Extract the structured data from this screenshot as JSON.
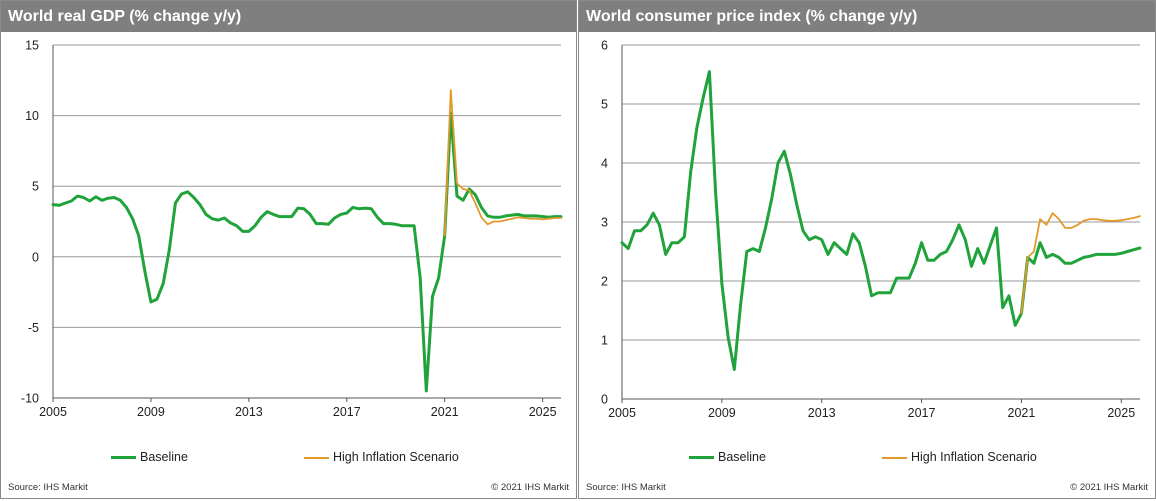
{
  "chart_data": [
    {
      "type": "line",
      "title": "World real GDP (% change y/y)",
      "x_ticks": [
        "2005",
        "2009",
        "2013",
        "2017",
        "2021",
        "2025"
      ],
      "y_ticks": [
        "15",
        "10",
        "5",
        "0",
        "-5",
        "-10"
      ],
      "xlim": [
        2005,
        2025.75
      ],
      "ylim": [
        -10,
        15
      ],
      "grid": "horizontal",
      "legend_position": "bottom",
      "series": [
        {
          "name": "Baseline",
          "color": "#1fa33a",
          "points": [
            [
              2005.0,
              3.7
            ],
            [
              2005.25,
              3.65
            ],
            [
              2005.5,
              3.8
            ],
            [
              2005.75,
              3.95
            ],
            [
              2006.0,
              4.3
            ],
            [
              2006.25,
              4.2
            ],
            [
              2006.5,
              3.95
            ],
            [
              2006.75,
              4.25
            ],
            [
              2007.0,
              4.0
            ],
            [
              2007.25,
              4.15
            ],
            [
              2007.5,
              4.2
            ],
            [
              2007.75,
              4.0
            ],
            [
              2008.0,
              3.5
            ],
            [
              2008.25,
              2.7
            ],
            [
              2008.5,
              1.5
            ],
            [
              2008.75,
              -1.0
            ],
            [
              2009.0,
              -3.2
            ],
            [
              2009.25,
              -3.0
            ],
            [
              2009.5,
              -1.9
            ],
            [
              2009.75,
              0.5
            ],
            [
              2010.0,
              3.8
            ],
            [
              2010.25,
              4.45
            ],
            [
              2010.5,
              4.6
            ],
            [
              2010.75,
              4.2
            ],
            [
              2011.0,
              3.7
            ],
            [
              2011.25,
              3.0
            ],
            [
              2011.5,
              2.7
            ],
            [
              2011.75,
              2.6
            ],
            [
              2012.0,
              2.75
            ],
            [
              2012.25,
              2.4
            ],
            [
              2012.5,
              2.2
            ],
            [
              2012.75,
              1.8
            ],
            [
              2013.0,
              1.8
            ],
            [
              2013.25,
              2.2
            ],
            [
              2013.5,
              2.8
            ],
            [
              2013.75,
              3.2
            ],
            [
              2014.0,
              3.0
            ],
            [
              2014.25,
              2.85
            ],
            [
              2014.5,
              2.85
            ],
            [
              2014.75,
              2.85
            ],
            [
              2015.0,
              3.45
            ],
            [
              2015.25,
              3.4
            ],
            [
              2015.5,
              3.0
            ],
            [
              2015.75,
              2.35
            ],
            [
              2016.0,
              2.35
            ],
            [
              2016.25,
              2.3
            ],
            [
              2016.5,
              2.75
            ],
            [
              2016.75,
              3.0
            ],
            [
              2017.0,
              3.1
            ],
            [
              2017.25,
              3.5
            ],
            [
              2017.5,
              3.4
            ],
            [
              2017.75,
              3.45
            ],
            [
              2018.0,
              3.4
            ],
            [
              2018.25,
              2.8
            ],
            [
              2018.5,
              2.35
            ],
            [
              2018.75,
              2.35
            ],
            [
              2019.0,
              2.3
            ],
            [
              2019.25,
              2.2
            ],
            [
              2019.5,
              2.2
            ],
            [
              2019.75,
              2.2
            ],
            [
              2020.0,
              -1.5
            ],
            [
              2020.25,
              -9.5
            ],
            [
              2020.5,
              -2.8
            ],
            [
              2020.75,
              -1.5
            ],
            [
              2021.0,
              1.5
            ],
            [
              2021.25,
              10.2
            ],
            [
              2021.5,
              4.3
            ],
            [
              2021.75,
              4.0
            ],
            [
              2022.0,
              4.8
            ],
            [
              2022.25,
              4.4
            ],
            [
              2022.5,
              3.5
            ],
            [
              2022.75,
              2.9
            ],
            [
              2023.0,
              2.8
            ],
            [
              2023.25,
              2.8
            ],
            [
              2023.5,
              2.9
            ],
            [
              2023.75,
              2.95
            ],
            [
              2024.0,
              3.0
            ],
            [
              2024.25,
              2.9
            ],
            [
              2024.5,
              2.9
            ],
            [
              2024.75,
              2.9
            ],
            [
              2025.0,
              2.85
            ],
            [
              2025.25,
              2.8
            ],
            [
              2025.5,
              2.85
            ],
            [
              2025.75,
              2.85
            ]
          ]
        },
        {
          "name": "High Inflation Scenario",
          "color": "#e3992a",
          "points": [
            [
              2021.0,
              1.5
            ],
            [
              2021.25,
              11.8
            ],
            [
              2021.5,
              5.2
            ],
            [
              2021.75,
              4.8
            ],
            [
              2022.0,
              4.7
            ],
            [
              2022.25,
              3.8
            ],
            [
              2022.5,
              2.8
            ],
            [
              2022.75,
              2.3
            ],
            [
              2023.0,
              2.5
            ],
            [
              2023.25,
              2.5
            ],
            [
              2023.5,
              2.6
            ],
            [
              2023.75,
              2.7
            ],
            [
              2024.0,
              2.8
            ],
            [
              2024.25,
              2.75
            ],
            [
              2024.5,
              2.7
            ],
            [
              2024.75,
              2.7
            ],
            [
              2025.0,
              2.65
            ],
            [
              2025.25,
              2.7
            ],
            [
              2025.5,
              2.75
            ],
            [
              2025.75,
              2.75
            ]
          ]
        }
      ]
    },
    {
      "type": "line",
      "title": "World consumer price index (% change y/y)",
      "x_ticks": [
        "2005",
        "2009",
        "2013",
        "2017",
        "2021",
        "2025"
      ],
      "y_ticks": [
        "6",
        "5",
        "4",
        "3",
        "2",
        "1",
        "0"
      ],
      "xlim": [
        2005,
        2025.75
      ],
      "ylim": [
        0,
        6
      ],
      "grid": "horizontal",
      "legend_position": "bottom",
      "series": [
        {
          "name": "Baseline",
          "color": "#1fa33a",
          "points": [
            [
              2005.0,
              2.65
            ],
            [
              2005.25,
              2.55
            ],
            [
              2005.5,
              2.85
            ],
            [
              2005.75,
              2.85
            ],
            [
              2006.0,
              2.95
            ],
            [
              2006.25,
              3.15
            ],
            [
              2006.5,
              2.95
            ],
            [
              2006.75,
              2.45
            ],
            [
              2007.0,
              2.65
            ],
            [
              2007.25,
              2.65
            ],
            [
              2007.5,
              2.75
            ],
            [
              2007.75,
              3.85
            ],
            [
              2008.0,
              4.6
            ],
            [
              2008.25,
              5.1
            ],
            [
              2008.5,
              5.55
            ],
            [
              2008.75,
              3.5
            ],
            [
              2009.0,
              1.95
            ],
            [
              2009.25,
              1.05
            ],
            [
              2009.5,
              0.5
            ],
            [
              2009.75,
              1.6
            ],
            [
              2010.0,
              2.5
            ],
            [
              2010.25,
              2.55
            ],
            [
              2010.5,
              2.5
            ],
            [
              2010.75,
              2.9
            ],
            [
              2011.0,
              3.4
            ],
            [
              2011.25,
              4.0
            ],
            [
              2011.5,
              4.2
            ],
            [
              2011.75,
              3.8
            ],
            [
              2012.0,
              3.3
            ],
            [
              2012.25,
              2.85
            ],
            [
              2012.5,
              2.7
            ],
            [
              2012.75,
              2.75
            ],
            [
              2013.0,
              2.7
            ],
            [
              2013.25,
              2.45
            ],
            [
              2013.5,
              2.65
            ],
            [
              2013.75,
              2.55
            ],
            [
              2014.0,
              2.45
            ],
            [
              2014.25,
              2.8
            ],
            [
              2014.5,
              2.65
            ],
            [
              2014.75,
              2.25
            ],
            [
              2015.0,
              1.75
            ],
            [
              2015.25,
              1.8
            ],
            [
              2015.5,
              1.8
            ],
            [
              2015.75,
              1.8
            ],
            [
              2016.0,
              2.05
            ],
            [
              2016.25,
              2.05
            ],
            [
              2016.5,
              2.05
            ],
            [
              2016.75,
              2.3
            ],
            [
              2017.0,
              2.65
            ],
            [
              2017.25,
              2.35
            ],
            [
              2017.5,
              2.35
            ],
            [
              2017.75,
              2.45
            ],
            [
              2018.0,
              2.5
            ],
            [
              2018.25,
              2.7
            ],
            [
              2018.5,
              2.95
            ],
            [
              2018.75,
              2.7
            ],
            [
              2019.0,
              2.25
            ],
            [
              2019.25,
              2.55
            ],
            [
              2019.5,
              2.3
            ],
            [
              2019.75,
              2.6
            ],
            [
              2020.0,
              2.9
            ],
            [
              2020.25,
              1.55
            ],
            [
              2020.5,
              1.75
            ],
            [
              2020.75,
              1.25
            ],
            [
              2021.0,
              1.45
            ],
            [
              2021.25,
              2.4
            ],
            [
              2021.5,
              2.3
            ],
            [
              2021.75,
              2.65
            ],
            [
              2022.0,
              2.4
            ],
            [
              2022.25,
              2.45
            ],
            [
              2022.5,
              2.4
            ],
            [
              2022.75,
              2.3
            ],
            [
              2023.0,
              2.3
            ],
            [
              2023.25,
              2.35
            ],
            [
              2023.5,
              2.4
            ],
            [
              2023.75,
              2.42
            ],
            [
              2024.0,
              2.45
            ],
            [
              2024.25,
              2.45
            ],
            [
              2024.5,
              2.45
            ],
            [
              2024.75,
              2.45
            ],
            [
              2025.0,
              2.47
            ],
            [
              2025.25,
              2.5
            ],
            [
              2025.5,
              2.53
            ],
            [
              2025.75,
              2.56
            ]
          ]
        },
        {
          "name": "High Inflation Scenario",
          "color": "#e3992a",
          "points": [
            [
              2021.0,
              1.45
            ],
            [
              2021.25,
              2.4
            ],
            [
              2021.5,
              2.5
            ],
            [
              2021.75,
              3.05
            ],
            [
              2022.0,
              2.95
            ],
            [
              2022.25,
              3.15
            ],
            [
              2022.5,
              3.05
            ],
            [
              2022.75,
              2.9
            ],
            [
              2023.0,
              2.9
            ],
            [
              2023.25,
              2.95
            ],
            [
              2023.5,
              3.02
            ],
            [
              2023.75,
              3.05
            ],
            [
              2024.0,
              3.05
            ],
            [
              2024.25,
              3.03
            ],
            [
              2024.5,
              3.02
            ],
            [
              2024.75,
              3.02
            ],
            [
              2025.0,
              3.03
            ],
            [
              2025.25,
              3.05
            ],
            [
              2025.5,
              3.07
            ],
            [
              2025.75,
              3.1
            ]
          ]
        }
      ]
    }
  ],
  "panels": [
    {
      "title": "World real GDP (% change y/y)",
      "legend": [
        "Baseline",
        "High Inflation Scenario"
      ],
      "source": "Source: IHS Markit",
      "copyright": "© 2021 IHS Markit"
    },
    {
      "title": "World consumer price index (% change y/y)",
      "legend": [
        "Baseline",
        "High Inflation Scenario"
      ],
      "source": "Source: IHS Markit",
      "copyright": "© 2021 IHS Markit"
    }
  ]
}
